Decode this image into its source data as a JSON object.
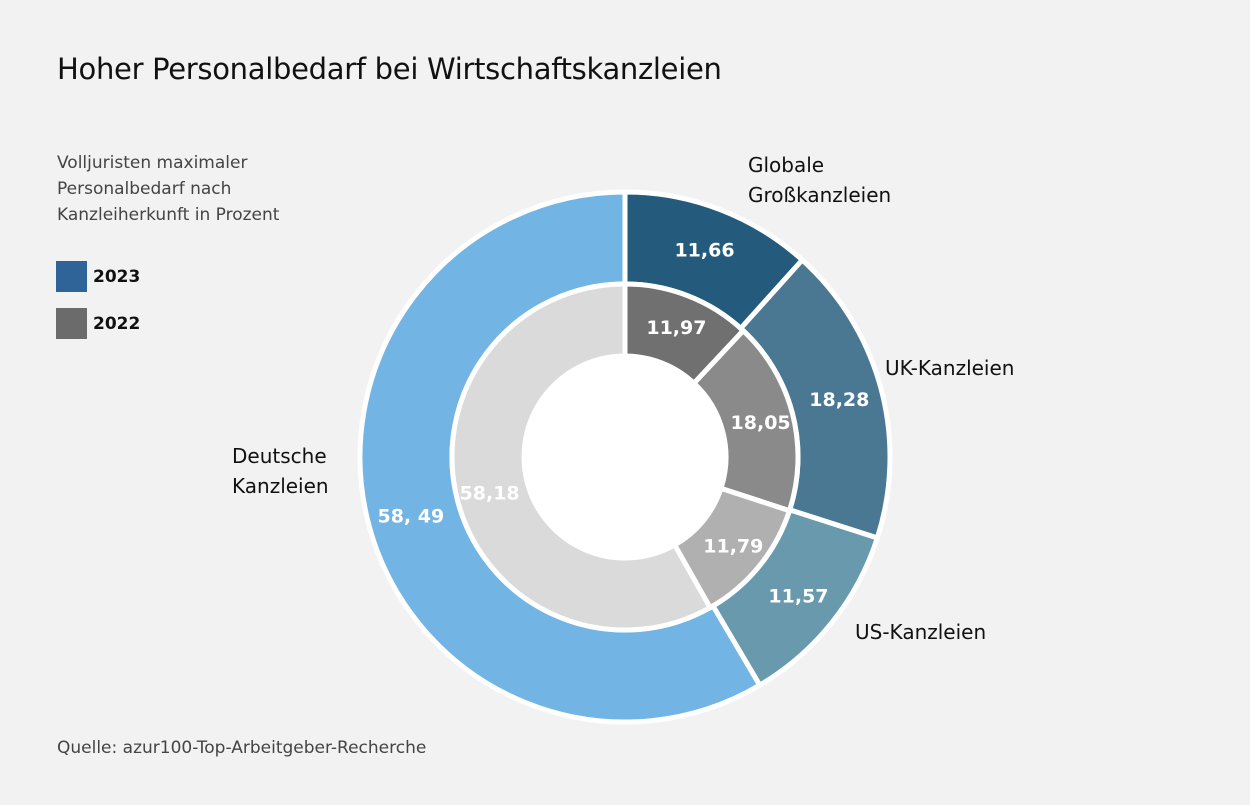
{
  "title": "Hoher Personalbedarf bei Wirtschaftskanzleien",
  "subtitle": "Volljuristen maximaler Personalbedarf nach Kanzleiherkunft in Prozent",
  "source": "Quelle: azur100-Top-Arbeitgeber-Recherche",
  "legend": [
    {
      "label": "2023",
      "color": "#2f6499"
    },
    {
      "label": "2022",
      "color": "#6b6b6b"
    }
  ],
  "chart_data": {
    "type": "pie",
    "subtype": "double-donut",
    "categories": [
      "Globale Großkanzleien",
      "UK-Kanzleien",
      "US-Kanzleien",
      "Deutsche Kanzleien"
    ],
    "series": [
      {
        "name": "2023",
        "ring": "outer",
        "values": [
          11.66,
          18.28,
          11.57,
          58.49
        ],
        "labels": [
          "11,66",
          "18,28",
          "11,57",
          "58, 49"
        ],
        "colors": [
          "#245a7c",
          "#4a7893",
          "#6899ac",
          "#72b4e3"
        ]
      },
      {
        "name": "2022",
        "ring": "inner",
        "values": [
          11.97,
          18.05,
          11.79,
          58.18
        ],
        "labels": [
          "11,97",
          "18,05",
          "11,79",
          "58,18"
        ],
        "colors": [
          "#707070",
          "#8a8a8a",
          "#b0b0b0",
          "#dadada"
        ]
      }
    ]
  }
}
